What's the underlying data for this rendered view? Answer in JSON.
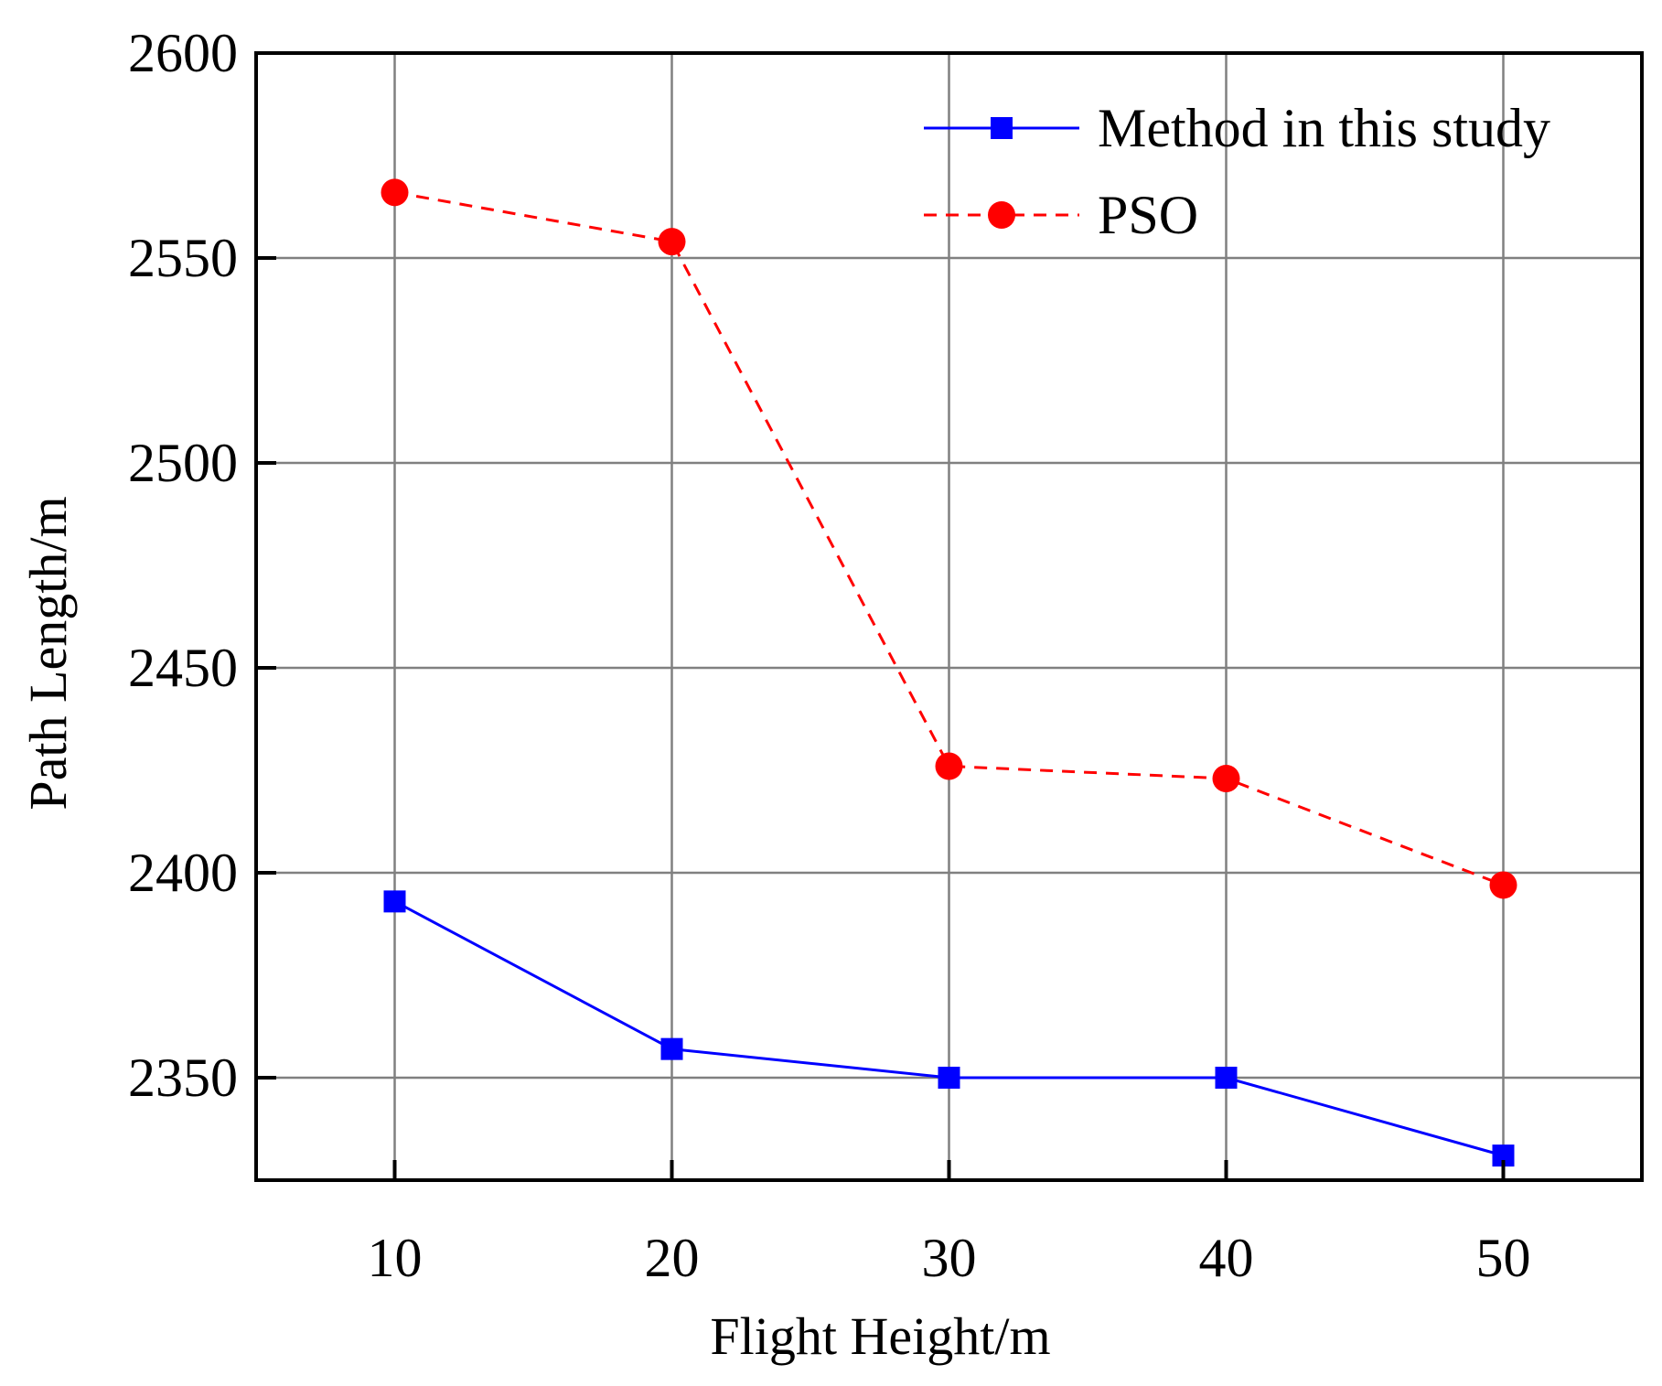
{
  "chart_data": {
    "type": "line",
    "title": "",
    "xlabel": "Flight Height/m",
    "ylabel": "Path Length/m",
    "x": [
      10,
      20,
      30,
      40,
      50
    ],
    "xticks": [
      10,
      20,
      30,
      40,
      50
    ],
    "xtick_labels": [
      "10",
      "20",
      "30",
      "40",
      "50"
    ],
    "xlim": [
      5,
      55
    ],
    "yticks": [
      2350,
      2400,
      2450,
      2500,
      2550,
      2600
    ],
    "ytick_labels": [
      "2350",
      "2400",
      "2450",
      "2500",
      "2550",
      "2600"
    ],
    "ylim": [
      2325,
      2600
    ],
    "grid": true,
    "legend_position": "top-right",
    "series": [
      {
        "name": "Method in this study",
        "color": "#0000FF",
        "marker": "square",
        "line_style": "solid",
        "values": [
          2393,
          2357,
          2350,
          2350,
          2331
        ]
      },
      {
        "name": "PSO",
        "color": "#FF0000",
        "marker": "circle",
        "line_style": "dashed",
        "values": [
          2566,
          2554,
          2426,
          2423,
          2397
        ]
      }
    ]
  }
}
